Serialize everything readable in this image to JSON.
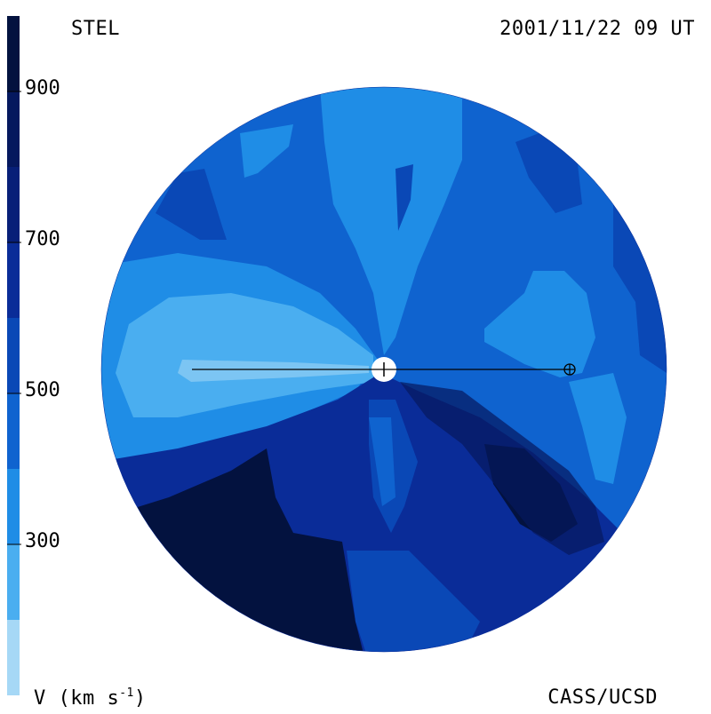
{
  "header": {
    "instrument": "STEL",
    "datetime": "2001/11/22 09 UT"
  },
  "footer": {
    "organization": "CASS/UCSD",
    "unit_label": "V (km s",
    "unit_exp": "-1",
    "unit_close": ")"
  },
  "colorbar": {
    "ticks": [
      "900",
      "700",
      "500",
      "300"
    ],
    "tick_values": [
      900,
      700,
      500,
      300
    ],
    "range": [
      100,
      1000
    ],
    "levels": [
      {
        "min": 100,
        "max": 200,
        "color": "#a6d8f6"
      },
      {
        "min": 200,
        "max": 300,
        "color": "#4aaef0"
      },
      {
        "min": 300,
        "max": 400,
        "color": "#1f8de6"
      },
      {
        "min": 400,
        "max": 500,
        "color": "#0f63cf"
      },
      {
        "min": 500,
        "max": 600,
        "color": "#0a48b6"
      },
      {
        "min": 600,
        "max": 700,
        "color": "#0a2c98"
      },
      {
        "min": 700,
        "max": 800,
        "color": "#071f78"
      },
      {
        "min": 800,
        "max": 900,
        "color": "#05185e"
      },
      {
        "min": 900,
        "max": 1000,
        "color": "#03123f"
      }
    ]
  },
  "markers": {
    "sun_icon": "sun-icon",
    "earth_icon": "earth-icon"
  }
}
